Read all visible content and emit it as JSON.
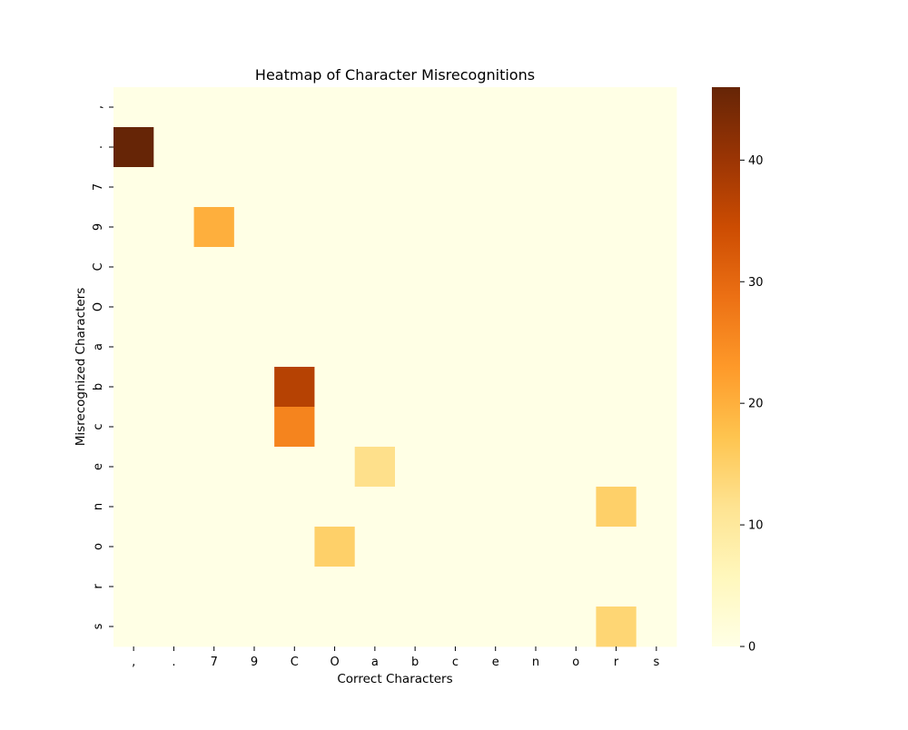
{
  "chart_data": {
    "type": "heatmap",
    "title": "Heatmap of Character Misrecognitions",
    "xlabel": "Correct Characters",
    "ylabel": "Misrecognized Characters",
    "x_categories": [
      ",",
      ".",
      "7",
      "9",
      "C",
      "O",
      "a",
      "b",
      "c",
      "e",
      "n",
      "o",
      "r",
      "s"
    ],
    "y_categories": [
      ",",
      ".",
      "7",
      "9",
      "C",
      "O",
      "a",
      "b",
      "c",
      "e",
      "n",
      "o",
      "r",
      "s"
    ],
    "cells": [
      {
        "x": ",",
        "y": ".",
        "value": 46
      },
      {
        "x": "7",
        "y": "9",
        "value": 20
      },
      {
        "x": "C",
        "y": "b",
        "value": 37
      },
      {
        "x": "C",
        "y": "c",
        "value": 26
      },
      {
        "x": "a",
        "y": "e",
        "value": 12
      },
      {
        "x": "r",
        "y": "n",
        "value": 15
      },
      {
        "x": "O",
        "y": "o",
        "value": 15
      },
      {
        "x": "r",
        "y": "s",
        "value": 14
      }
    ],
    "default_value": 0,
    "colormap": "YlOrBr",
    "colorbar": {
      "min": 0,
      "max": 46,
      "ticks": [
        0,
        10,
        20,
        30,
        40
      ]
    },
    "grid": false
  }
}
